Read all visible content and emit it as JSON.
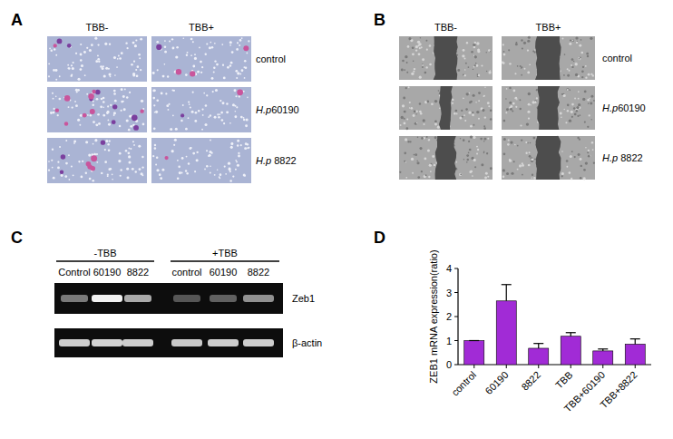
{
  "panels": {
    "A": {
      "label": "A",
      "columns": [
        "TBB-",
        "TBB+"
      ],
      "rows": [
        "control",
        "H.p60190",
        "H.p 8822"
      ]
    },
    "B": {
      "label": "B",
      "columns": [
        "TBB-",
        "TBB+"
      ],
      "rows": [
        "control",
        "H.p60190",
        "H.p 8822"
      ]
    },
    "C": {
      "label": "C",
      "groups": [
        "-TBB",
        "+TBB"
      ],
      "lanes": [
        "Control",
        "60190",
        "8822",
        "control",
        "60190",
        "8822"
      ],
      "rows": [
        "Zeb1",
        "β-actin"
      ]
    },
    "D": {
      "label": "D"
    }
  },
  "chart_data": {
    "type": "bar",
    "categories": [
      "control",
      "60190",
      "8822",
      "TBB",
      "TBB+60190",
      "TBB+8822"
    ],
    "values": [
      1.0,
      2.65,
      0.68,
      1.18,
      0.57,
      0.85
    ],
    "errors": [
      0,
      0.68,
      0.2,
      0.15,
      0.08,
      0.22
    ],
    "color": "#a12bd6",
    "y_label": "ZEB1 mRNA expression(ratio)",
    "ylim": [
      0,
      4
    ],
    "yticks": [
      0,
      1,
      2,
      3,
      4
    ],
    "grid": false
  }
}
